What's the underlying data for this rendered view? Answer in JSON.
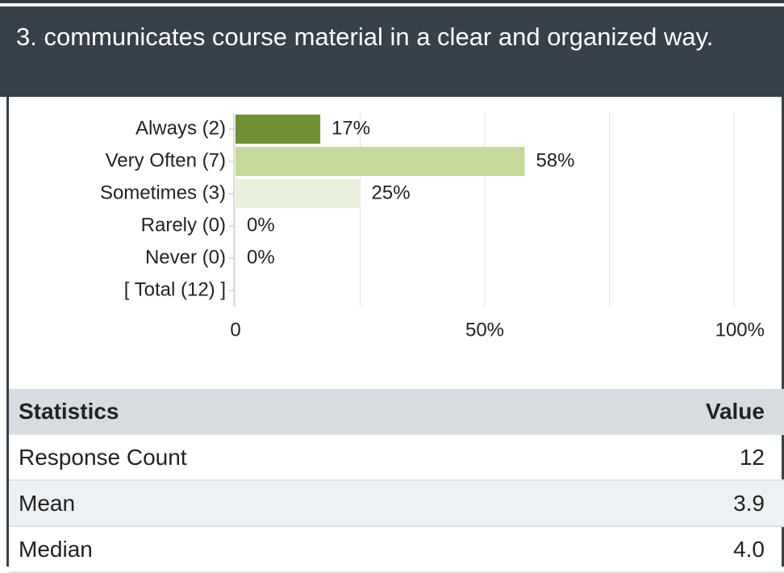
{
  "header": {
    "title": "3. communicates course material in a clear and organized way."
  },
  "chart_data": {
    "type": "bar",
    "orientation": "horizontal",
    "categories": [
      "Always (2)",
      "Very Often (7)",
      "Sometimes (3)",
      "Rarely (0)",
      "Never (0)",
      "[ Total (12) ]"
    ],
    "values": [
      17,
      58,
      25,
      0,
      0,
      null
    ],
    "value_labels": [
      "17%",
      "58%",
      "25%",
      "0%",
      "0%",
      null
    ],
    "colors": [
      "#6f9134",
      "#c5d99b",
      "#e9f0dc",
      "#e9f0dc",
      "#e9f0dc",
      "#e9f0dc"
    ],
    "xlim": [
      0,
      100
    ],
    "xticks": [
      0,
      {
        "value": 50,
        "label": "50%"
      },
      {
        "value": 100,
        "label": "100%"
      }
    ],
    "xminorticks": [
      25,
      75
    ],
    "grid": true
  },
  "table": {
    "header": [
      "Statistics",
      "Value"
    ],
    "rows": [
      [
        "Response Count",
        "12"
      ],
      [
        "Mean",
        "3.9"
      ],
      [
        "Median",
        "4.0"
      ]
    ]
  }
}
